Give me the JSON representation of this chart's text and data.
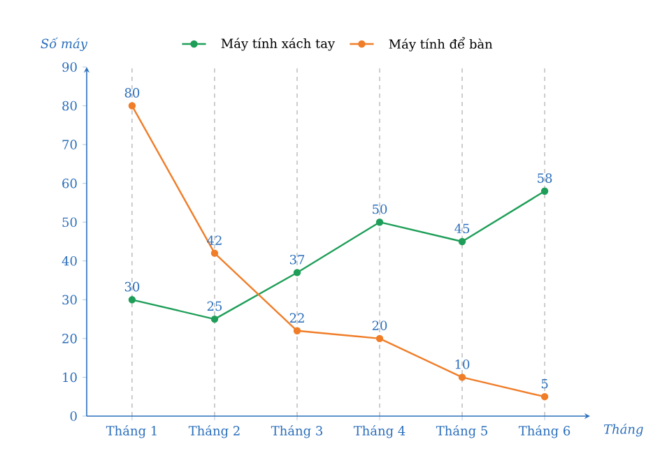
{
  "chart_data": {
    "type": "line",
    "ylabel": "Số máy",
    "xlabel": "Tháng",
    "categories": [
      "Tháng 1",
      "Tháng 2",
      "Tháng 3",
      "Tháng 4",
      "Tháng 5",
      "Tháng 6"
    ],
    "series": [
      {
        "name": "Máy tính xách tay",
        "color": "#1e9e58",
        "values": [
          30,
          25,
          37,
          50,
          45,
          58
        ]
      },
      {
        "name": "Máy tính để bàn",
        "color": "#f07d28",
        "values": [
          80,
          42,
          22,
          20,
          10,
          5
        ]
      }
    ],
    "ylim": [
      0,
      90
    ],
    "yticks": [
      0,
      10,
      20,
      30,
      40,
      50,
      60,
      70,
      80,
      90
    ],
    "grid": "x",
    "legend": "top",
    "marker": "circle",
    "line_style": "solid",
    "data_labels": true
  }
}
